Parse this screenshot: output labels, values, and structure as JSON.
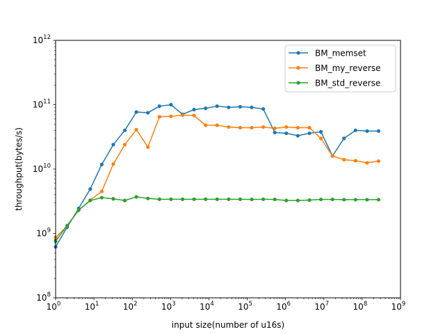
{
  "chart_data": {
    "type": "line",
    "title": "",
    "xlabel": "input size(number of u16s)",
    "ylabel": "throughput(bytes/s)",
    "xscale": "log",
    "yscale": "log",
    "xlim": [
      1,
      1000000000
    ],
    "ylim": [
      100000000,
      1000000000000
    ],
    "legend_position": "top-right",
    "grid": false,
    "x_tick_exponents": [
      "0",
      "1",
      "2",
      "3",
      "4",
      "5",
      "6",
      "7",
      "8",
      "9"
    ],
    "y_tick_exponents": [
      "8",
      "9",
      "10",
      "11",
      "12"
    ],
    "tick_base": "10",
    "x": [
      1,
      2,
      4,
      8,
      16,
      32,
      64,
      128,
      256,
      512,
      1024,
      2048,
      4096,
      8192,
      16384,
      32768,
      65536,
      131072,
      262144,
      524288,
      1048576,
      2097152,
      4194304,
      8388608,
      16777216,
      33554432,
      67108864,
      134217728,
      268435456
    ],
    "series": [
      {
        "name": "BM_memset",
        "color": "#1f77b4",
        "values": [
          620000000,
          1250000000,
          2450000000,
          4900000000,
          11800000000,
          24000000000,
          40000000000,
          77000000000,
          75000000000,
          95000000000,
          100000000000,
          71000000000,
          84000000000,
          88000000000,
          95000000000,
          91000000000,
          93000000000,
          91000000000,
          86000000000,
          37000000000,
          36000000000,
          33000000000,
          36000000000,
          38000000000,
          16000000000,
          30000000000,
          40000000000,
          39000000000,
          39000000000
        ]
      },
      {
        "name": "BM_my_reverse",
        "color": "#ff7f0e",
        "values": [
          860000000,
          1320000000,
          2300000000,
          3300000000,
          4500000000,
          12000000000,
          24000000000,
          41000000000,
          22000000000,
          65000000000,
          66000000000,
          69000000000,
          68000000000,
          48000000000,
          48000000000,
          45000000000,
          44000000000,
          44000000000,
          45000000000,
          43000000000,
          45000000000,
          44000000000,
          44000000000,
          30000000000,
          16000000000,
          14000000000,
          13500000000,
          12500000000,
          13300000000
        ]
      },
      {
        "name": "BM_std_reverse",
        "color": "#2ca02c",
        "values": [
          760000000,
          1330000000,
          2300000000,
          3250000000,
          3600000000,
          3450000000,
          3250000000,
          3700000000,
          3500000000,
          3400000000,
          3400000000,
          3400000000,
          3400000000,
          3400000000,
          3400000000,
          3400000000,
          3400000000,
          3380000000,
          3400000000,
          3380000000,
          3250000000,
          3250000000,
          3300000000,
          3380000000,
          3380000000,
          3350000000,
          3350000000,
          3350000000,
          3350000000
        ]
      }
    ]
  }
}
